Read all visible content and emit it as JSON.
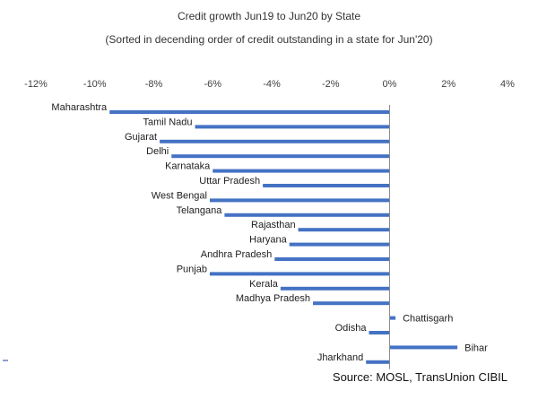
{
  "chart_data": {
    "type": "bar",
    "orientation": "horizontal",
    "title": "Credit growth Jun19 to Jun20 by State",
    "subtitle": "(Sorted in decending order of credit outstanding in a state for Jun'20)",
    "source": "Source: MOSL, TransUnion CIBIL",
    "xlim": [
      -12,
      4
    ],
    "xticks": [
      "-12%",
      "-10%",
      "-8%",
      "-6%",
      "-4%",
      "-2%",
      "0%",
      "2%",
      "4%"
    ],
    "xtick_values": [
      -12,
      -10,
      -8,
      -6,
      -4,
      -2,
      0,
      2,
      4
    ],
    "tick_position": "top",
    "bar_color": "#4472c4",
    "categories": [
      "Maharashtra",
      "Tamil Nadu",
      "Gujarat",
      "Delhi",
      "Karnataka",
      "Uttar Pradesh",
      "West Bengal",
      "Telangana",
      "Rajasthan",
      "Haryana",
      "Andhra Pradesh",
      "Punjab",
      "Kerala",
      "Madhya Pradesh",
      "Chattisgarh",
      "Odisha",
      "Bihar",
      "Jharkhand"
    ],
    "values": [
      -9.5,
      -6.6,
      -7.8,
      -7.4,
      -6.0,
      -4.3,
      -6.1,
      -5.6,
      -3.1,
      -3.4,
      -3.9,
      -6.1,
      -3.7,
      -2.6,
      0.2,
      -0.7,
      2.3,
      -0.8
    ],
    "grid": false
  }
}
